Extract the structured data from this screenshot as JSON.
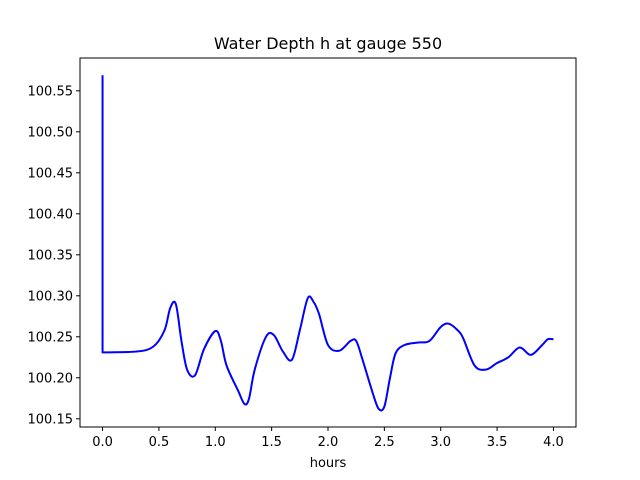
{
  "chart_data": {
    "type": "line",
    "title": "Water Depth h at gauge 550",
    "xlabel": "hours",
    "ylabel": "",
    "xlim": [
      -0.2,
      4.2
    ],
    "ylim": [
      100.14,
      100.59
    ],
    "grid": false,
    "legend": "none",
    "xticks": [
      0.0,
      0.5,
      1.0,
      1.5,
      2.0,
      2.5,
      3.0,
      3.5,
      4.0
    ],
    "xtick_labels": [
      "0.0",
      "0.5",
      "1.0",
      "1.5",
      "2.0",
      "2.5",
      "3.0",
      "3.5",
      "4.0"
    ],
    "yticks": [
      100.15,
      100.2,
      100.25,
      100.3,
      100.35,
      100.4,
      100.45,
      100.5,
      100.55
    ],
    "ytick_labels": [
      "100.15",
      "100.20",
      "100.25",
      "100.30",
      "100.35",
      "100.40",
      "100.45",
      "100.50",
      "100.55"
    ],
    "series": [
      {
        "color": "#0000ff",
        "x": [
          0.0,
          0.0,
          0.001,
          0.3,
          0.45,
          0.55,
          0.6,
          0.65,
          0.7,
          0.75,
          0.82,
          0.9,
          1.0,
          1.05,
          1.1,
          1.2,
          1.26,
          1.3,
          1.35,
          1.45,
          1.52,
          1.6,
          1.68,
          1.75,
          1.82,
          1.87,
          1.92,
          2.0,
          2.1,
          2.2,
          2.25,
          2.3,
          2.4,
          2.45,
          2.5,
          2.55,
          2.6,
          2.68,
          2.8,
          2.9,
          3.0,
          3.07,
          3.15,
          3.2,
          3.3,
          3.4,
          3.5,
          3.6,
          3.7,
          3.8,
          3.9,
          3.95,
          4.0
        ],
        "y": [
          100.569,
          100.231,
          100.231,
          100.232,
          100.238,
          100.258,
          100.285,
          100.29,
          100.245,
          100.21,
          100.203,
          100.235,
          100.257,
          100.245,
          100.215,
          100.185,
          100.168,
          100.175,
          100.21,
          100.25,
          100.252,
          100.232,
          100.222,
          100.258,
          100.297,
          100.293,
          100.278,
          100.24,
          100.233,
          100.245,
          100.245,
          100.225,
          100.18,
          100.162,
          100.165,
          100.2,
          100.23,
          100.24,
          100.243,
          100.245,
          100.262,
          100.266,
          100.258,
          100.248,
          100.215,
          100.21,
          100.218,
          100.225,
          100.237,
          100.228,
          100.24,
          100.247,
          100.247
        ]
      }
    ]
  }
}
